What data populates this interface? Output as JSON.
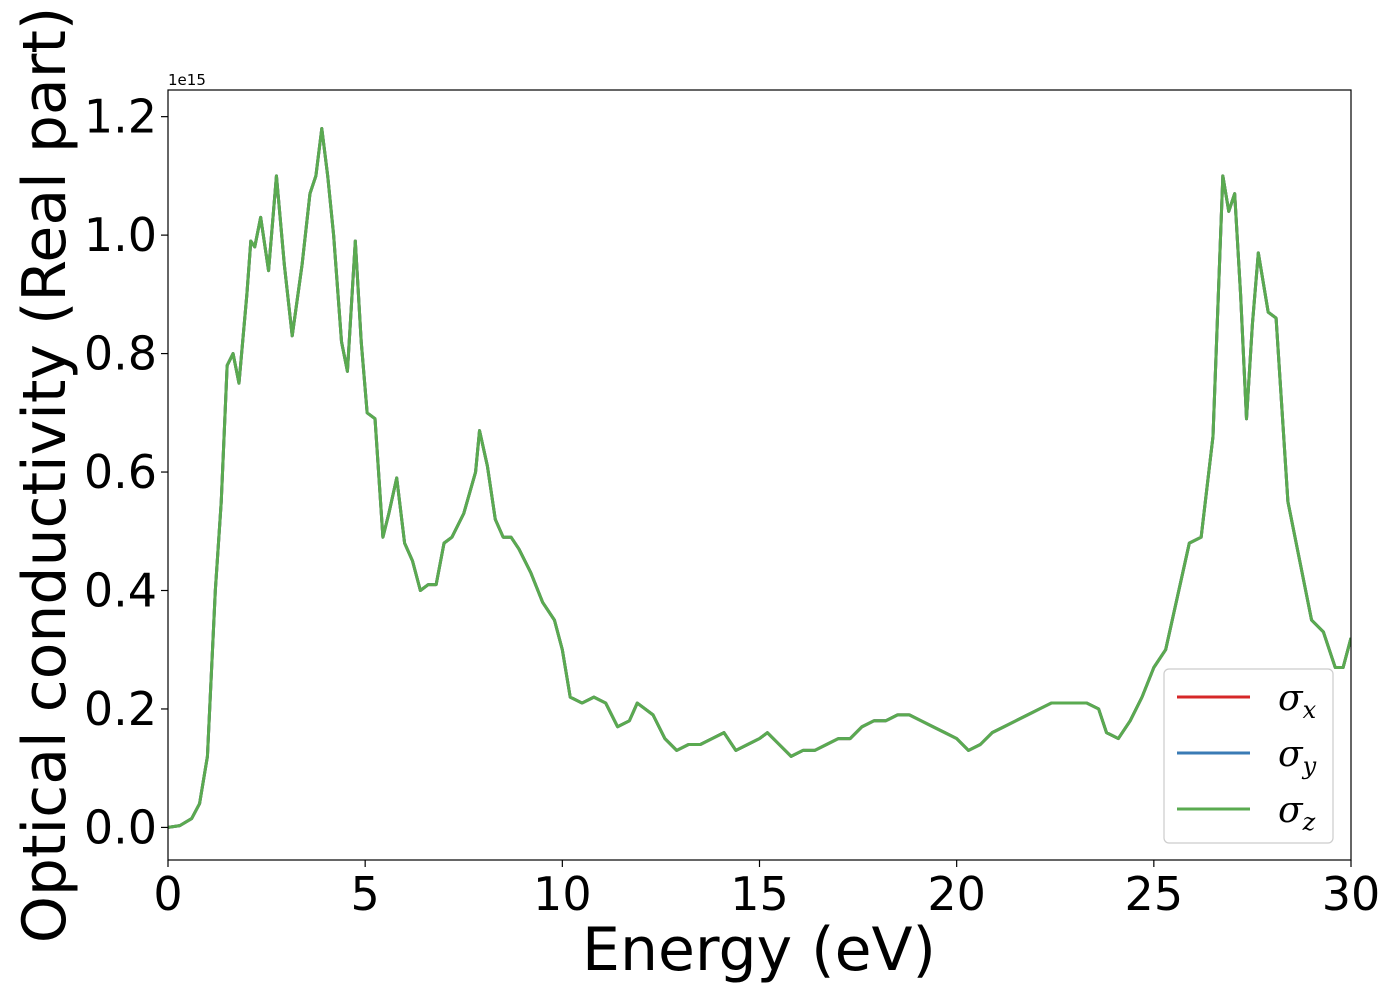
{
  "chart_data": {
    "type": "line",
    "xlabel": "Energy (eV)",
    "ylabel": "Optical conductivity (Real part)",
    "y_offset_label": "1e15",
    "xlim": [
      0,
      30
    ],
    "ylim": [
      -0.055,
      1.245
    ],
    "x_ticks": [
      0,
      5,
      10,
      15,
      20,
      25,
      30
    ],
    "y_ticks": [
      0.0,
      0.2,
      0.4,
      0.6,
      0.8,
      1.0,
      1.2
    ],
    "y_tick_labels": [
      "0.0",
      "0.2",
      "0.4",
      "0.6",
      "0.8",
      "1.0",
      "1.2"
    ],
    "x_tick_labels": [
      "0",
      "5",
      "10",
      "15",
      "20",
      "25",
      "30"
    ],
    "legend_position": "lower right",
    "series": [
      {
        "name": "σx",
        "symbol": "σ",
        "subscript": "x",
        "color": "#d62728"
      },
      {
        "name": "σy",
        "symbol": "σ",
        "subscript": "y",
        "color": "#3a7bb5"
      },
      {
        "name": "σz",
        "symbol": "σ",
        "subscript": "z",
        "color": "#5aaa50"
      }
    ],
    "x": [
      0,
      0.3,
      0.6,
      0.8,
      1.0,
      1.2,
      1.35,
      1.5,
      1.65,
      1.8,
      2.0,
      2.1,
      2.2,
      2.35,
      2.55,
      2.75,
      2.95,
      3.15,
      3.4,
      3.6,
      3.75,
      3.9,
      4.05,
      4.2,
      4.4,
      4.55,
      4.75,
      4.9,
      5.05,
      5.25,
      5.45,
      5.6,
      5.8,
      6.0,
      6.2,
      6.4,
      6.6,
      6.8,
      7.0,
      7.2,
      7.5,
      7.8,
      7.9,
      8.1,
      8.3,
      8.5,
      8.7,
      8.9,
      9.2,
      9.5,
      9.8,
      10.0,
      10.2,
      10.5,
      10.8,
      11.1,
      11.4,
      11.7,
      11.9,
      12.1,
      12.3,
      12.6,
      12.9,
      13.2,
      13.5,
      13.8,
      14.1,
      14.4,
      14.7,
      15.0,
      15.2,
      15.5,
      15.8,
      16.1,
      16.4,
      16.7,
      17.0,
      17.3,
      17.6,
      17.9,
      18.2,
      18.5,
      18.8,
      19.1,
      19.4,
      19.7,
      20.0,
      20.3,
      20.6,
      20.9,
      21.2,
      21.5,
      21.8,
      22.1,
      22.4,
      22.7,
      23.0,
      23.3,
      23.6,
      23.8,
      24.1,
      24.4,
      24.7,
      25.0,
      25.3,
      25.6,
      25.9,
      26.2,
      26.5,
      26.75,
      26.9,
      27.05,
      27.2,
      27.35,
      27.5,
      27.65,
      27.9,
      28.1,
      28.4,
      28.7,
      29.0,
      29.3,
      29.6,
      29.8,
      30.0
    ],
    "y": [
      0.0,
      0.003,
      0.015,
      0.04,
      0.12,
      0.4,
      0.55,
      0.78,
      0.8,
      0.75,
      0.9,
      0.99,
      0.98,
      1.03,
      0.94,
      1.1,
      0.95,
      0.83,
      0.95,
      1.07,
      1.1,
      1.18,
      1.1,
      1.0,
      0.82,
      0.77,
      0.99,
      0.82,
      0.7,
      0.69,
      0.49,
      0.53,
      0.59,
      0.48,
      0.45,
      0.4,
      0.41,
      0.41,
      0.48,
      0.49,
      0.53,
      0.6,
      0.67,
      0.61,
      0.52,
      0.49,
      0.49,
      0.47,
      0.43,
      0.38,
      0.35,
      0.3,
      0.22,
      0.21,
      0.22,
      0.21,
      0.17,
      0.18,
      0.21,
      0.2,
      0.19,
      0.15,
      0.13,
      0.14,
      0.14,
      0.15,
      0.16,
      0.13,
      0.14,
      0.15,
      0.16,
      0.14,
      0.12,
      0.13,
      0.13,
      0.14,
      0.15,
      0.15,
      0.17,
      0.18,
      0.18,
      0.19,
      0.19,
      0.18,
      0.17,
      0.16,
      0.15,
      0.13,
      0.14,
      0.16,
      0.17,
      0.18,
      0.19,
      0.2,
      0.21,
      0.21,
      0.21,
      0.21,
      0.2,
      0.16,
      0.15,
      0.18,
      0.22,
      0.27,
      0.3,
      0.39,
      0.48,
      0.49,
      0.66,
      1.1,
      1.04,
      1.07,
      0.9,
      0.69,
      0.85,
      0.97,
      0.87,
      0.86,
      0.55,
      0.45,
      0.35,
      0.33,
      0.27,
      0.27,
      0.32
    ]
  }
}
